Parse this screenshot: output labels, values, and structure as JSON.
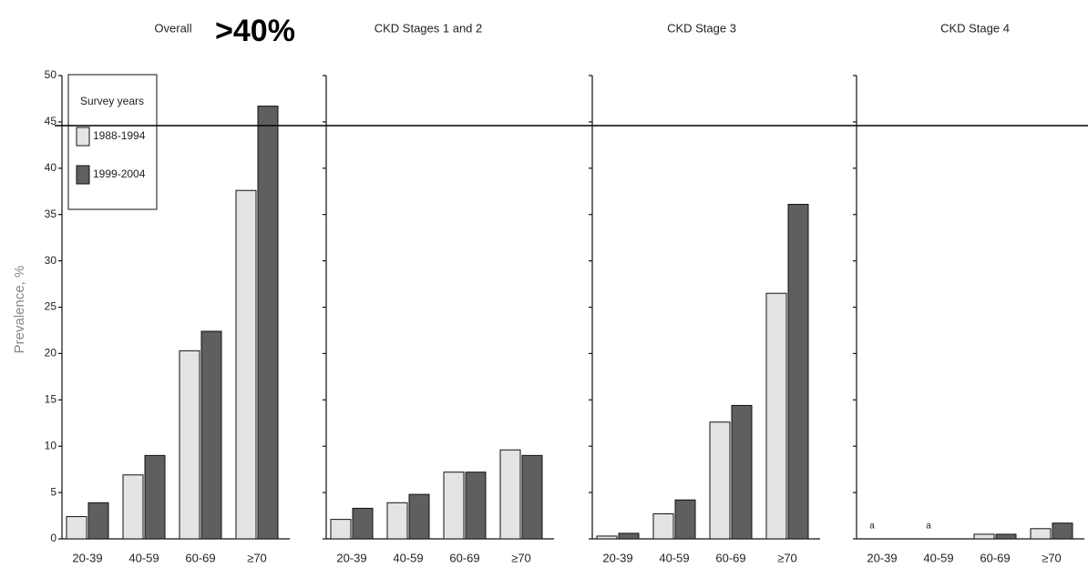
{
  "chart_data": [
    {
      "type": "bar",
      "title": "Overall",
      "annotation": ">40%",
      "y_label": "Prevalence, %",
      "legend_title": "Survey years",
      "categories": [
        "20-39",
        "40-59",
        "60-69",
        "≥70"
      ],
      "series": [
        {
          "name": "1988-1994",
          "color": "#e4e4e4",
          "values": [
            2.4,
            6.9,
            20.3,
            37.6
          ]
        },
        {
          "name": "1999-2004",
          "color": "#5f5f5f",
          "values": [
            3.9,
            9.0,
            22.4,
            46.7
          ]
        }
      ],
      "ylim": [
        0,
        50
      ],
      "yticks": [
        0,
        5,
        10,
        15,
        20,
        25,
        30,
        35,
        40,
        45,
        50
      ],
      "hline": 44.6
    },
    {
      "type": "bar",
      "title": "CKD Stages 1 and 2",
      "categories": [
        "20-39",
        "40-59",
        "60-69",
        "≥70"
      ],
      "series": [
        {
          "color": "#e4e4e4",
          "values": [
            2.1,
            3.9,
            7.2,
            9.6
          ]
        },
        {
          "color": "#5f5f5f",
          "values": [
            3.3,
            4.8,
            7.2,
            9.0
          ]
        }
      ],
      "ylim": [
        0,
        50
      ],
      "yticks": [
        0,
        5,
        10,
        15,
        20,
        25,
        30,
        35,
        40,
        45,
        50
      ]
    },
    {
      "type": "bar",
      "title": "CKD Stage 3",
      "categories": [
        "20-39",
        "40-59",
        "60-69",
        "≥70"
      ],
      "series": [
        {
          "color": "#e4e4e4",
          "values": [
            0.3,
            2.7,
            12.6,
            26.5
          ]
        },
        {
          "color": "#5f5f5f",
          "values": [
            0.6,
            4.2,
            14.4,
            36.1
          ]
        }
      ],
      "ylim": [
        0,
        50
      ],
      "yticks": [
        0,
        5,
        10,
        15,
        20,
        25,
        30,
        35,
        40,
        45,
        50
      ]
    },
    {
      "type": "bar",
      "title": "CKD Stage 4",
      "categories": [
        "20-39",
        "40-59",
        "60-69",
        "≥70"
      ],
      "series": [
        {
          "color": "#e4e4e4",
          "values": [
            null,
            null,
            0.5,
            1.1
          ]
        },
        {
          "color": "#5f5f5f",
          "values": [
            null,
            null,
            0.5,
            1.7
          ]
        }
      ],
      "footnote_marks": [
        "a",
        "a",
        null,
        null
      ],
      "ylim": [
        0,
        50
      ],
      "yticks": [
        0,
        5,
        10,
        15,
        20,
        25,
        30,
        35,
        40,
        45,
        50
      ]
    }
  ]
}
